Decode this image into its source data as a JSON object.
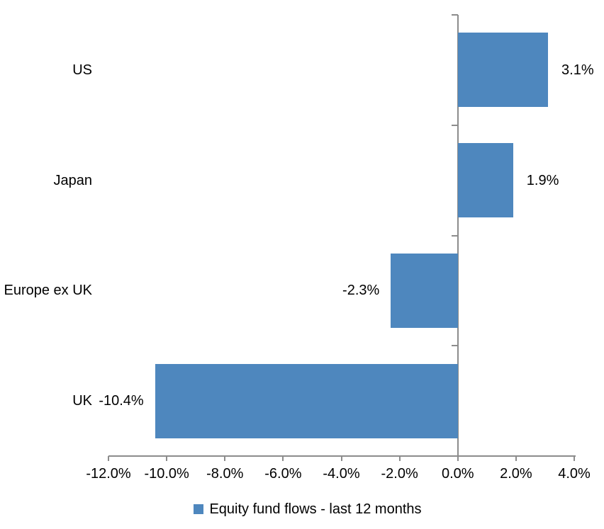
{
  "chart_data": {
    "type": "bar",
    "orientation": "horizontal",
    "title": "",
    "categories": [
      "US",
      "Japan",
      "Europe ex UK",
      "UK"
    ],
    "values": [
      3.1,
      1.9,
      -2.3,
      -10.4
    ],
    "value_labels": [
      "3.1%",
      "1.9%",
      "-2.3%",
      "-10.4%"
    ],
    "series": [
      {
        "name": "Equity fund flows - last 12 months",
        "values": [
          3.1,
          1.9,
          -2.3,
          -10.4
        ]
      }
    ],
    "xlabel": "",
    "ylabel": "",
    "xlim": [
      -12,
      4
    ],
    "x_tick_step": 2,
    "x_tick_values": [
      -12,
      -10,
      -8,
      -6,
      -4,
      -2,
      0,
      2,
      4
    ],
    "x_tick_labels": [
      "-12.0%",
      "-10.0%",
      "-8.0%",
      "-6.0%",
      "-4.0%",
      "-2.0%",
      "0.0%",
      "2.0%",
      "4.0%"
    ],
    "grid": false,
    "legend_position": "bottom",
    "colors": {
      "bar": "#4E87BE",
      "axis": "#8C8C8C",
      "text": "#000000",
      "background": "#FFFFFF"
    }
  },
  "legend": {
    "label": "Equity fund flows - last 12 months",
    "swatch_color": "#4E87BE"
  }
}
